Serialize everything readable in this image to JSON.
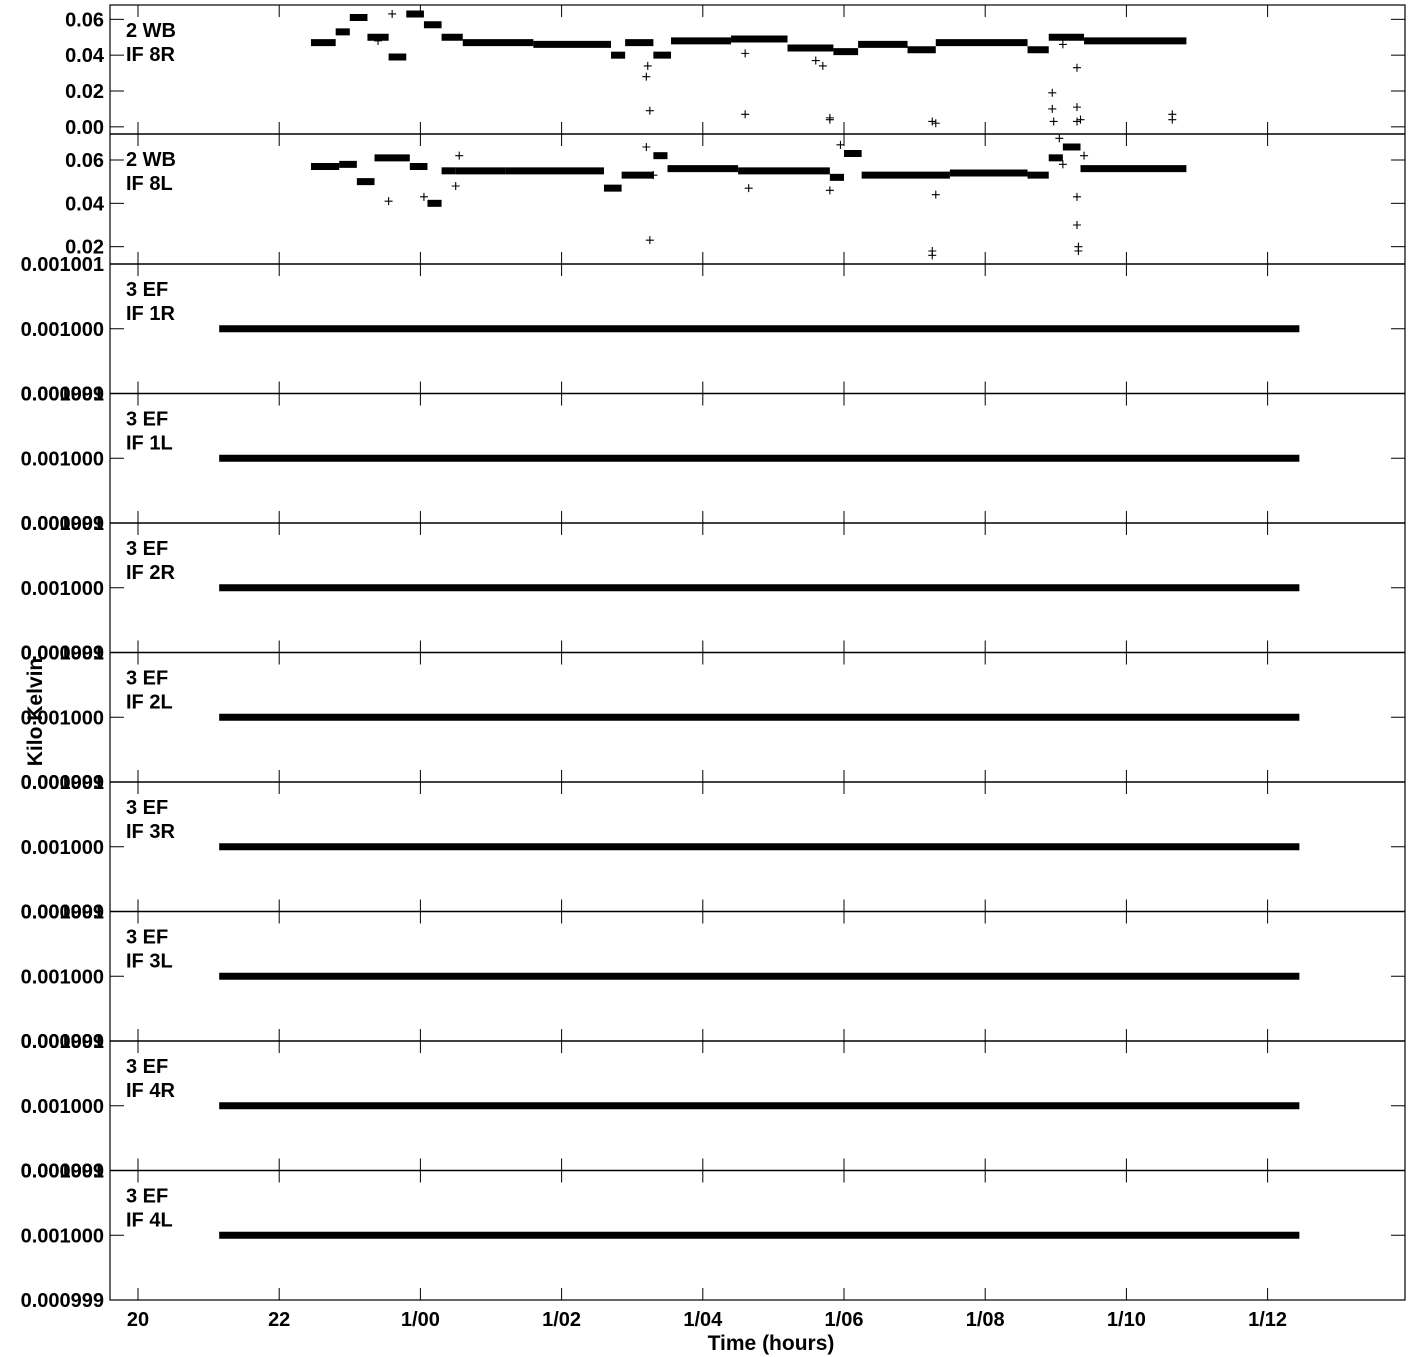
{
  "chart_data": {
    "type": "scatter",
    "ylabel": "Kilo Kelvin",
    "xlabel": "Time (hours)",
    "x_ticks": [
      {
        "label": "20",
        "t": 0
      },
      {
        "label": "22",
        "t": 2
      },
      {
        "label": "1/00",
        "t": 4
      },
      {
        "label": "1/02",
        "t": 6
      },
      {
        "label": "1/04",
        "t": 8
      },
      {
        "label": "1/06",
        "t": 10
      },
      {
        "label": "1/08",
        "t": 12
      },
      {
        "label": "1/10",
        "t": 14
      },
      {
        "label": "1/12",
        "t": 16
      }
    ],
    "panels": [
      {
        "label1": "2 WB",
        "label2": "IF 8R",
        "ylim": [
          -0.004,
          0.068
        ],
        "yticks": [
          "0.06",
          "0.04",
          "0.02",
          "0.00"
        ],
        "ytick_values": [
          0.06,
          0.04,
          0.02,
          0.0
        ],
        "segments": [
          {
            "t0": 2.45,
            "t1": 2.8,
            "y": 0.047
          },
          {
            "t0": 2.8,
            "t1": 3.0,
            "y": 0.053
          },
          {
            "t0": 3.0,
            "t1": 3.25,
            "y": 0.061
          },
          {
            "t0": 3.25,
            "t1": 3.55,
            "y": 0.05
          },
          {
            "t0": 3.55,
            "t1": 3.8,
            "y": 0.039
          },
          {
            "t0": 3.8,
            "t1": 4.05,
            "y": 0.063
          },
          {
            "t0": 4.05,
            "t1": 4.3,
            "y": 0.057
          },
          {
            "t0": 4.3,
            "t1": 4.6,
            "y": 0.05
          },
          {
            "t0": 4.6,
            "t1": 5.6,
            "y": 0.047
          },
          {
            "t0": 5.6,
            "t1": 6.7,
            "y": 0.046
          },
          {
            "t0": 6.7,
            "t1": 6.9,
            "y": 0.04
          },
          {
            "t0": 6.9,
            "t1": 7.3,
            "y": 0.047
          },
          {
            "t0": 7.3,
            "t1": 7.55,
            "y": 0.04
          },
          {
            "t0": 7.55,
            "t1": 8.4,
            "y": 0.048
          },
          {
            "t0": 8.4,
            "t1": 9.2,
            "y": 0.049
          },
          {
            "t0": 9.2,
            "t1": 9.85,
            "y": 0.044
          },
          {
            "t0": 9.85,
            "t1": 10.2,
            "y": 0.042
          },
          {
            "t0": 10.2,
            "t1": 10.9,
            "y": 0.046
          },
          {
            "t0": 10.9,
            "t1": 11.3,
            "y": 0.043
          },
          {
            "t0": 11.3,
            "t1": 12.6,
            "y": 0.047
          },
          {
            "t0": 12.6,
            "t1": 12.9,
            "y": 0.043
          },
          {
            "t0": 12.9,
            "t1": 13.4,
            "y": 0.05
          },
          {
            "t0": 13.4,
            "t1": 14.85,
            "y": 0.048
          }
        ],
        "points": [
          {
            "t": 3.6,
            "y": 0.063
          },
          {
            "t": 3.4,
            "y": 0.048
          },
          {
            "t": 7.25,
            "y": 0.009
          },
          {
            "t": 7.2,
            "y": 0.028
          },
          {
            "t": 7.22,
            "y": 0.034
          },
          {
            "t": 8.6,
            "y": 0.041
          },
          {
            "t": 8.6,
            "y": 0.007
          },
          {
            "t": 9.8,
            "y": 0.005
          },
          {
            "t": 9.8,
            "y": 0.004
          },
          {
            "t": 9.7,
            "y": 0.034
          },
          {
            "t": 9.6,
            "y": 0.037
          },
          {
            "t": 11.25,
            "y": 0.003
          },
          {
            "t": 11.3,
            "y": 0.002
          },
          {
            "t": 12.95,
            "y": 0.019
          },
          {
            "t": 12.95,
            "y": 0.01
          },
          {
            "t": 12.97,
            "y": 0.003
          },
          {
            "t": 13.3,
            "y": 0.011
          },
          {
            "t": 13.3,
            "y": 0.003
          },
          {
            "t": 13.3,
            "y": 0.033
          },
          {
            "t": 13.35,
            "y": 0.004
          },
          {
            "t": 13.1,
            "y": 0.046
          },
          {
            "t": 14.65,
            "y": 0.007
          },
          {
            "t": 14.65,
            "y": 0.004
          }
        ]
      },
      {
        "label1": "2 WB",
        "label2": "IF 8L",
        "ylim": [
          0.012,
          0.072
        ],
        "yticks": [
          "0.06",
          "0.04",
          "0.02"
        ],
        "ytick_values": [
          0.06,
          0.04,
          0.02
        ],
        "segments": [
          {
            "t0": 2.45,
            "t1": 2.85,
            "y": 0.057
          },
          {
            "t0": 2.85,
            "t1": 3.1,
            "y": 0.058
          },
          {
            "t0": 3.1,
            "t1": 3.35,
            "y": 0.05
          },
          {
            "t0": 3.35,
            "t1": 3.85,
            "y": 0.061
          },
          {
            "t0": 3.85,
            "t1": 4.1,
            "y": 0.057
          },
          {
            "t0": 4.1,
            "t1": 4.3,
            "y": 0.04
          },
          {
            "t0": 4.3,
            "t1": 4.5,
            "y": 0.055
          },
          {
            "t0": 4.5,
            "t1": 5.2,
            "y": 0.055
          },
          {
            "t0": 5.2,
            "t1": 6.6,
            "y": 0.055
          },
          {
            "t0": 6.6,
            "t1": 6.85,
            "y": 0.047
          },
          {
            "t0": 6.85,
            "t1": 7.3,
            "y": 0.053
          },
          {
            "t0": 7.3,
            "t1": 7.5,
            "y": 0.062
          },
          {
            "t0": 7.5,
            "t1": 8.5,
            "y": 0.056
          },
          {
            "t0": 8.5,
            "t1": 9.8,
            "y": 0.055
          },
          {
            "t0": 9.8,
            "t1": 10.0,
            "y": 0.052
          },
          {
            "t0": 10.0,
            "t1": 10.25,
            "y": 0.063
          },
          {
            "t0": 10.25,
            "t1": 11.5,
            "y": 0.053
          },
          {
            "t0": 11.5,
            "t1": 12.6,
            "y": 0.054
          },
          {
            "t0": 12.6,
            "t1": 12.9,
            "y": 0.053
          },
          {
            "t0": 12.9,
            "t1": 13.1,
            "y": 0.061
          },
          {
            "t0": 13.1,
            "t1": 13.35,
            "y": 0.066
          },
          {
            "t0": 13.35,
            "t1": 14.85,
            "y": 0.056
          }
        ],
        "points": [
          {
            "t": 3.55,
            "y": 0.041
          },
          {
            "t": 4.05,
            "y": 0.043
          },
          {
            "t": 4.5,
            "y": 0.048
          },
          {
            "t": 4.55,
            "y": 0.062
          },
          {
            "t": 7.2,
            "y": 0.066
          },
          {
            "t": 7.25,
            "y": 0.023
          },
          {
            "t": 7.3,
            "y": 0.053
          },
          {
            "t": 8.65,
            "y": 0.047
          },
          {
            "t": 9.8,
            "y": 0.046
          },
          {
            "t": 9.95,
            "y": 0.067
          },
          {
            "t": 11.25,
            "y": 0.016
          },
          {
            "t": 11.25,
            "y": 0.018
          },
          {
            "t": 11.3,
            "y": 0.044
          },
          {
            "t": 13.3,
            "y": 0.043
          },
          {
            "t": 13.3,
            "y": 0.03
          },
          {
            "t": 13.32,
            "y": 0.02
          },
          {
            "t": 13.32,
            "y": 0.018
          },
          {
            "t": 13.05,
            "y": 0.07
          },
          {
            "t": 13.4,
            "y": 0.062
          },
          {
            "t": 13.1,
            "y": 0.058
          }
        ]
      },
      {
        "label1": "3 EF",
        "label2": "IF 1R",
        "ylim": [
          0.000999,
          0.001001
        ],
        "value": 0.001,
        "t0": 1.15,
        "t1": 16.45
      },
      {
        "label1": "3 EF",
        "label2": "IF 1L",
        "ylim": [
          0.000999,
          0.001001
        ],
        "value": 0.001,
        "t0": 1.15,
        "t1": 16.45
      },
      {
        "label1": "3 EF",
        "label2": "IF 2R",
        "ylim": [
          0.000999,
          0.001001
        ],
        "value": 0.001,
        "t0": 1.15,
        "t1": 16.45
      },
      {
        "label1": "3 EF",
        "label2": "IF 2L",
        "ylim": [
          0.000999,
          0.001001
        ],
        "value": 0.001,
        "t0": 1.15,
        "t1": 16.45
      },
      {
        "label1": "3 EF",
        "label2": "IF 3R",
        "ylim": [
          0.000999,
          0.001001
        ],
        "value": 0.001,
        "t0": 1.15,
        "t1": 16.45
      },
      {
        "label1": "3 EF",
        "label2": "IF 3L",
        "ylim": [
          0.000999,
          0.001001
        ],
        "value": 0.001,
        "t0": 1.15,
        "t1": 16.45
      },
      {
        "label1": "3 EF",
        "label2": "IF 4R",
        "ylim": [
          0.000999,
          0.001001
        ],
        "value": 0.001,
        "t0": 1.15,
        "t1": 16.45
      },
      {
        "label1": "3 EF",
        "label2": "IF 4L",
        "ylim": [
          0.000999,
          0.001001
        ],
        "value": 0.001,
        "t0": 1.15,
        "t1": 16.45
      }
    ],
    "ef_ytick_labels": [
      "0.001001",
      "0.001000",
      "0.000999"
    ],
    "ef_ytick_values": [
      0.001001,
      0.001,
      0.000999
    ]
  }
}
